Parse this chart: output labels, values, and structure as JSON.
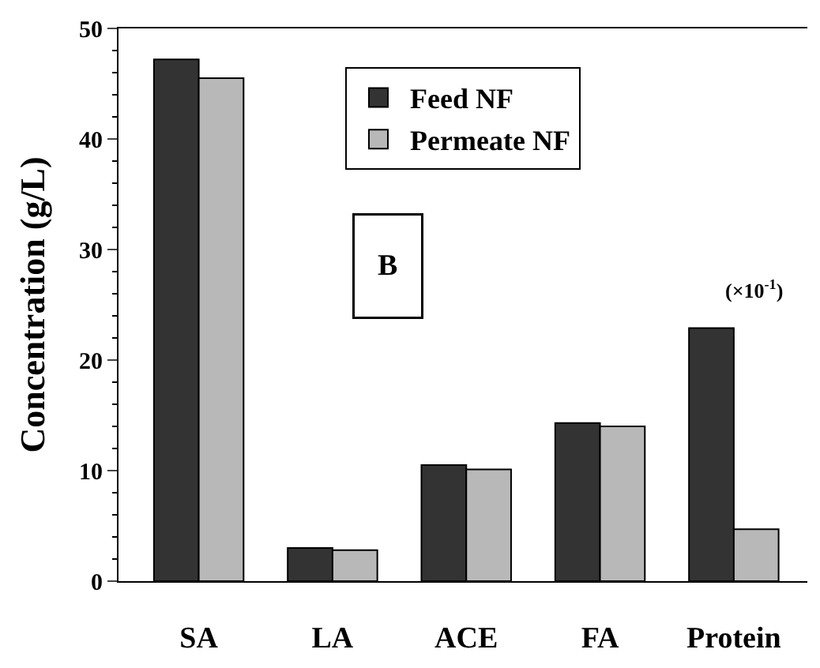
{
  "chart_data": {
    "type": "bar",
    "ylabel": "Concentration (g/L)",
    "categories": [
      "SA",
      "LA",
      "ACE",
      "FA",
      "Protein"
    ],
    "series": [
      {
        "name": "Feed NF",
        "color": "#333333",
        "values": [
          47.2,
          3.0,
          10.5,
          14.3,
          22.9
        ]
      },
      {
        "name": "Permeate NF",
        "color": "#b8b8b8",
        "values": [
          45.5,
          2.8,
          10.1,
          14.0,
          4.7
        ]
      }
    ],
    "ylim": [
      0,
      50
    ],
    "yticks": [
      0,
      10,
      20,
      30,
      40,
      50
    ],
    "legend": "top",
    "annotations": [
      "B",
      "(×10$^{-1}$)"
    ]
  }
}
